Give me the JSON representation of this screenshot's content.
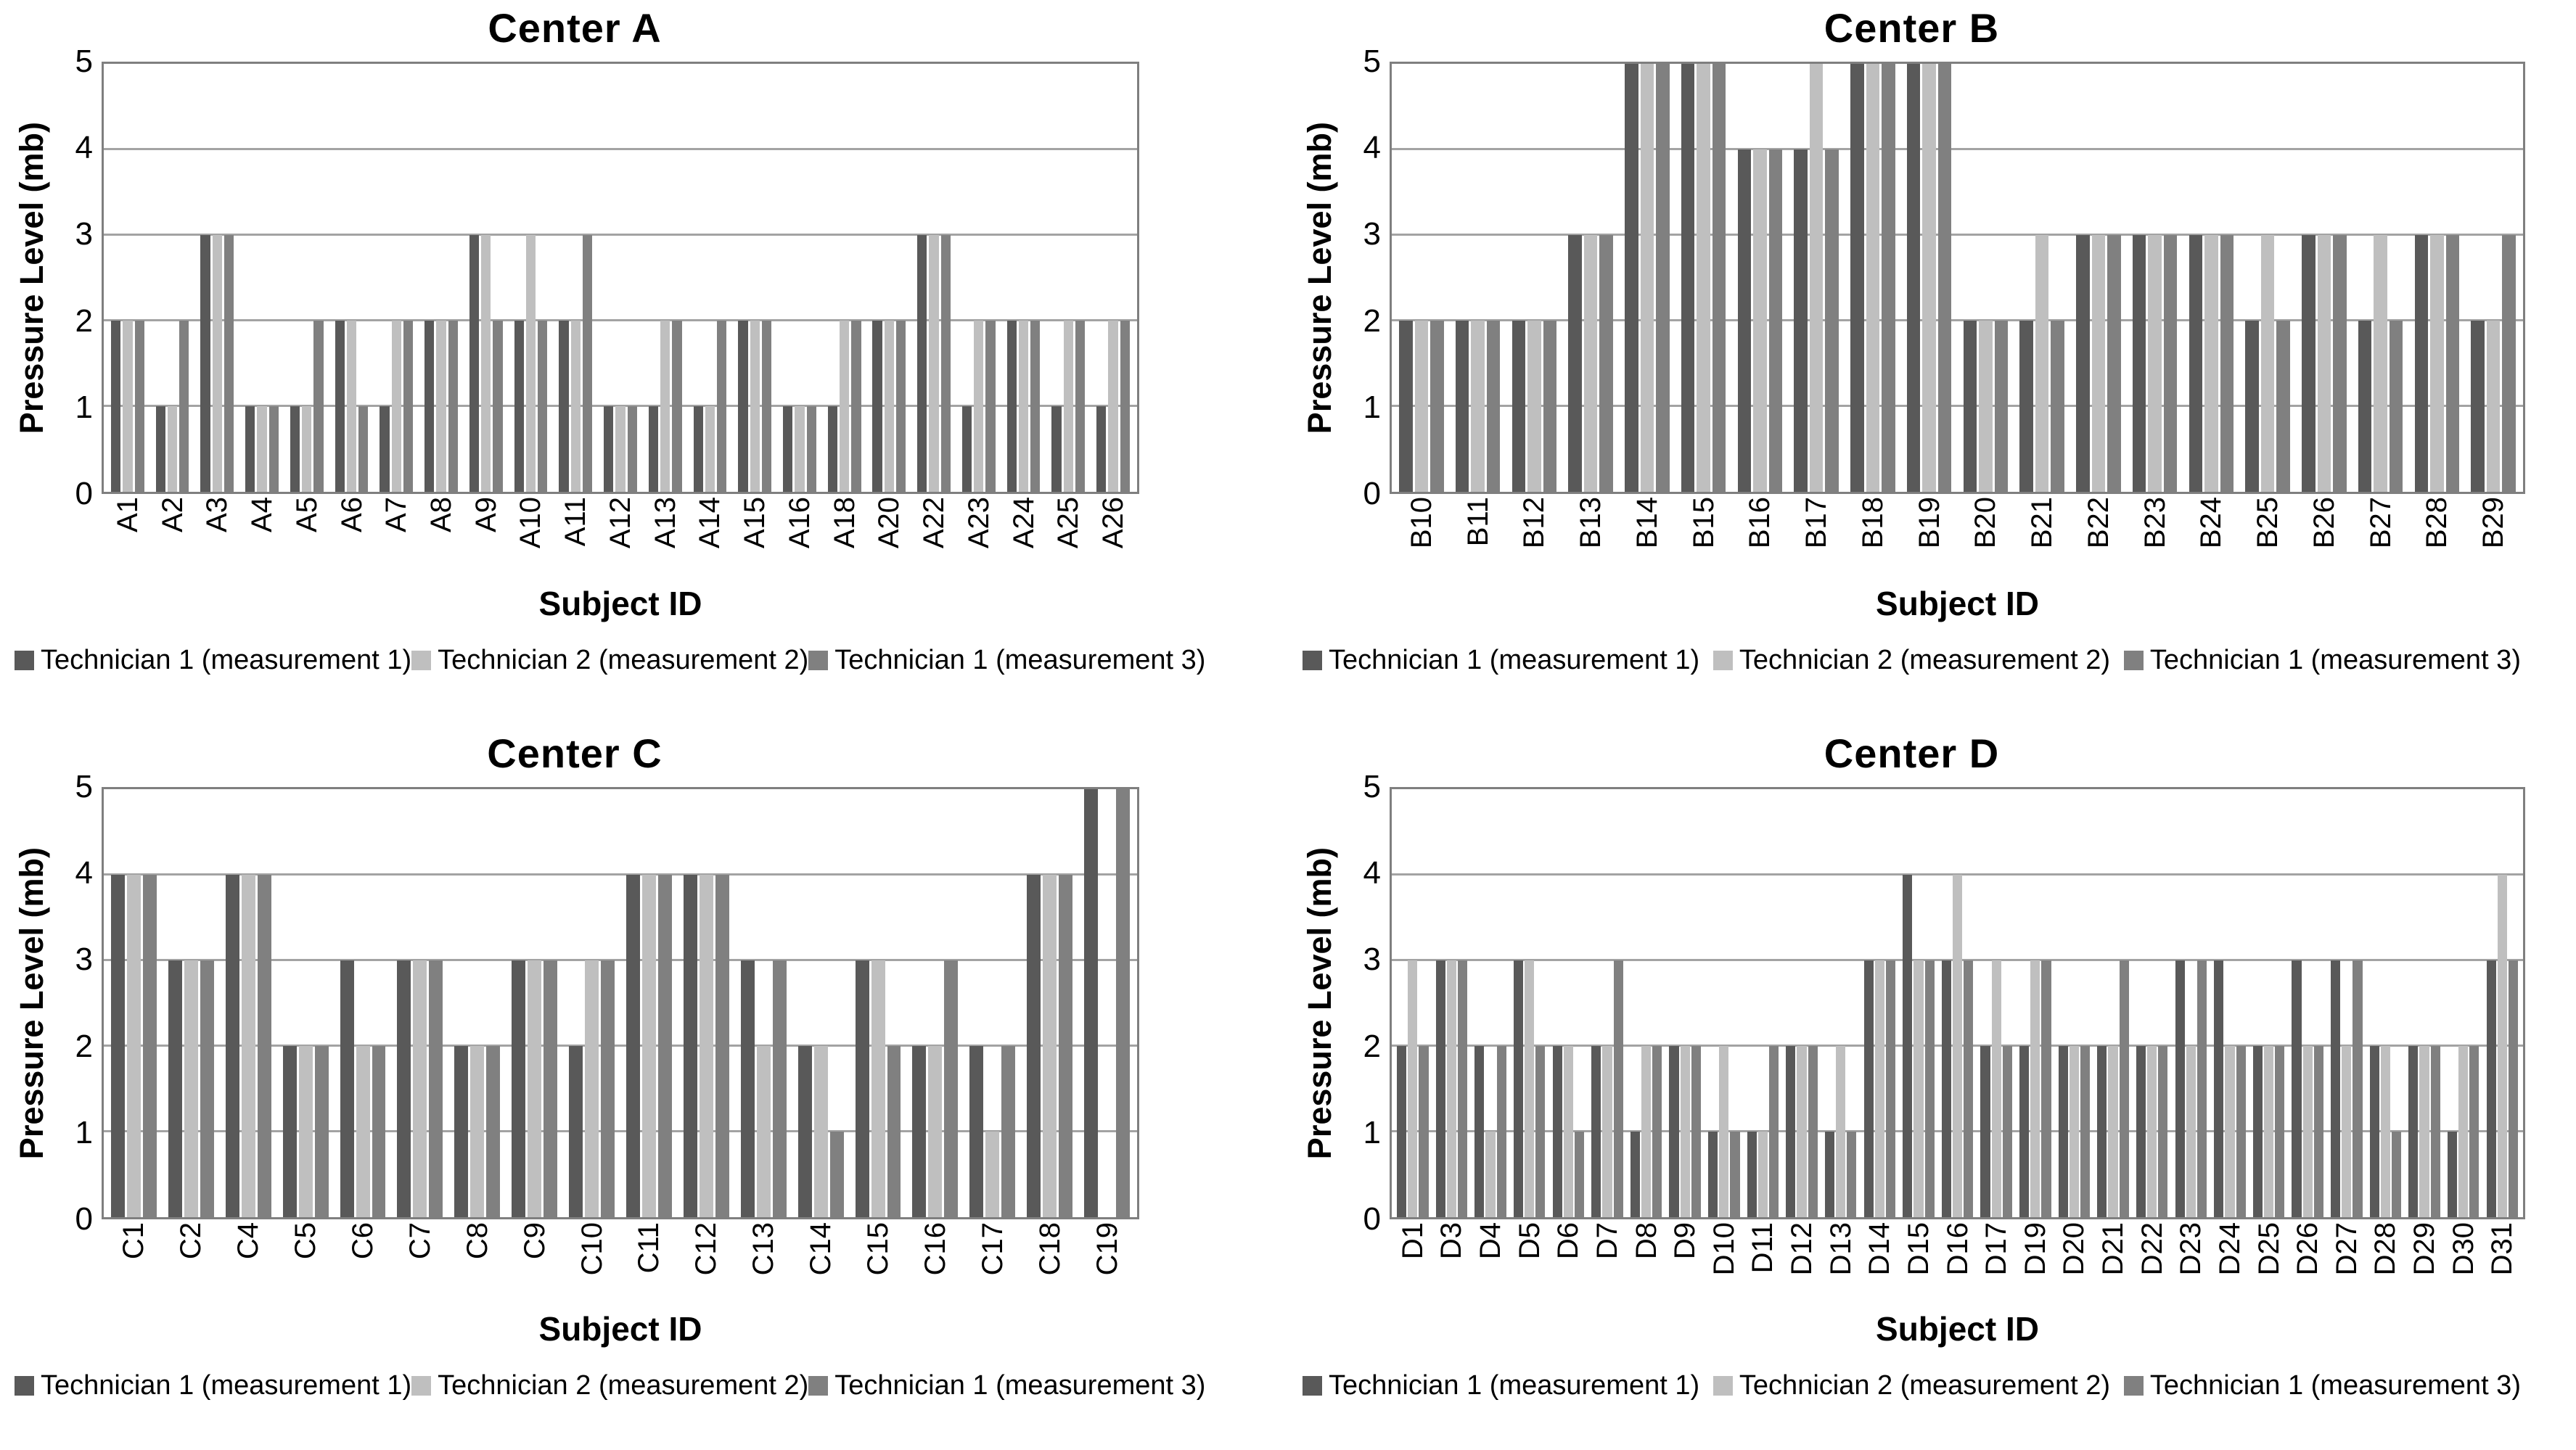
{
  "page": {
    "background": "#ffffff"
  },
  "colors": {
    "series": [
      "#595959",
      "#bfbfbf",
      "#808080"
    ],
    "gridline": "#a3a3a3",
    "axis_line": "#7f7f7f",
    "text": "#000000"
  },
  "legend_labels": [
    "Technician 1 (measurement 1)",
    "Technician 2 (measurement 2)",
    "Technician 1 (measurement 3)"
  ],
  "chart_data": [
    {
      "type": "bar",
      "title": "Center A",
      "xlabel": "Subject ID",
      "ylabel": "Pressure Level (mb)",
      "ylim": [
        0,
        5
      ],
      "yticks": [
        "5",
        "4",
        "3",
        "2",
        "1",
        "0"
      ],
      "grid": true,
      "legend_position": "bottom",
      "categories": [
        "A1",
        "A2",
        "A3",
        "A4",
        "A5",
        "A6",
        "A7",
        "A8",
        "A9",
        "A10",
        "A11",
        "A12",
        "A13",
        "A14",
        "A15",
        "A16",
        "A18",
        "A20",
        "A22",
        "A23",
        "A24",
        "A25",
        "A26"
      ],
      "series": [
        {
          "name": "Technician 1 (measurement 1)",
          "values": [
            2,
            1,
            3,
            1,
            1,
            2,
            1,
            2,
            3,
            2,
            2,
            1,
            1,
            1,
            2,
            1,
            1,
            2,
            3,
            1,
            2,
            1,
            1
          ]
        },
        {
          "name": "Technician 2 (measurement 2)",
          "values": [
            2,
            1,
            3,
            1,
            1,
            2,
            2,
            2,
            3,
            3,
            2,
            1,
            2,
            1,
            2,
            1,
            2,
            2,
            3,
            2,
            2,
            2,
            2
          ]
        },
        {
          "name": "Technician 1 (measurement 3)",
          "values": [
            2,
            2,
            3,
            1,
            2,
            1,
            2,
            2,
            2,
            2,
            3,
            1,
            2,
            2,
            2,
            1,
            2,
            2,
            3,
            2,
            2,
            2,
            2
          ]
        }
      ]
    },
    {
      "type": "bar",
      "title": "Center B",
      "xlabel": "Subject ID",
      "ylabel": "Pressure Level (mb)",
      "ylim": [
        0,
        5
      ],
      "yticks": [
        "5",
        "4",
        "3",
        "2",
        "1",
        "0"
      ],
      "grid": true,
      "legend_position": "bottom",
      "categories": [
        "B10",
        "B11",
        "B12",
        "B13",
        "B14",
        "B15",
        "B16",
        "B17",
        "B18",
        "B19",
        "B20",
        "B21",
        "B22",
        "B23",
        "B24",
        "B25",
        "B26",
        "B27",
        "B28",
        "B29"
      ],
      "series": [
        {
          "name": "Technician 1 (measurement 1)",
          "values": [
            2,
            2,
            2,
            3,
            5,
            5,
            4,
            4,
            5,
            5,
            2,
            2,
            3,
            3,
            3,
            2,
            3,
            2,
            3,
            2
          ]
        },
        {
          "name": "Technician 2 (measurement 2)",
          "values": [
            2,
            2,
            2,
            3,
            5,
            5,
            4,
            5,
            5,
            5,
            2,
            3,
            3,
            3,
            3,
            3,
            3,
            3,
            3,
            2
          ]
        },
        {
          "name": "Technician 1 (measurement 3)",
          "values": [
            2,
            2,
            2,
            3,
            5,
            5,
            4,
            4,
            5,
            5,
            2,
            2,
            3,
            3,
            3,
            2,
            3,
            2,
            3,
            3
          ]
        }
      ]
    },
    {
      "type": "bar",
      "title": "Center C",
      "xlabel": "Subject ID",
      "ylabel": "Pressure Level (mb)",
      "ylim": [
        0,
        5
      ],
      "yticks": [
        "5",
        "4",
        "3",
        "2",
        "1",
        "0"
      ],
      "grid": true,
      "legend_position": "bottom",
      "categories": [
        "C1",
        "C2",
        "C4",
        "C5",
        "C6",
        "C7",
        "C8",
        "C9",
        "C10",
        "C11",
        "C12",
        "C13",
        "C14",
        "C15",
        "C16",
        "C17",
        "C18",
        "C19"
      ],
      "series": [
        {
          "name": "Technician 1 (measurement 1)",
          "values": [
            4,
            3,
            4,
            2,
            3,
            3,
            2,
            3,
            2,
            4,
            4,
            3,
            2,
            3,
            2,
            2,
            4,
            5
          ]
        },
        {
          "name": "Technician 2 (measurement 2)",
          "values": [
            4,
            3,
            4,
            2,
            2,
            3,
            2,
            3,
            3,
            4,
            4,
            2,
            2,
            3,
            2,
            1,
            4,
            null
          ]
        },
        {
          "name": "Technician 1 (measurement 3)",
          "values": [
            4,
            3,
            4,
            2,
            2,
            3,
            2,
            3,
            3,
            4,
            4,
            3,
            1,
            2,
            3,
            2,
            4,
            5
          ]
        }
      ]
    },
    {
      "type": "bar",
      "title": "Center D",
      "xlabel": "Subject ID",
      "ylabel": "Pressure Level (mb)",
      "ylim": [
        0,
        5
      ],
      "yticks": [
        "5",
        "4",
        "3",
        "2",
        "1",
        "0"
      ],
      "grid": true,
      "legend_position": "bottom",
      "categories": [
        "D1",
        "D3",
        "D4",
        "D5",
        "D6",
        "D7",
        "D8",
        "D9",
        "D10",
        "D11",
        "D12",
        "D13",
        "D14",
        "D15",
        "D16",
        "D17",
        "D19",
        "D20",
        "D21",
        "D22",
        "D23",
        "D24",
        "D25",
        "D26",
        "D27",
        "D28",
        "D29",
        "D30",
        "D31"
      ],
      "series": [
        {
          "name": "Technician 1 (measurement 1)",
          "values": [
            2,
            3,
            2,
            3,
            2,
            2,
            1,
            2,
            1,
            1,
            2,
            1,
            3,
            4,
            3,
            2,
            2,
            2,
            2,
            2,
            3,
            3,
            2,
            3,
            3,
            2,
            2,
            1,
            3
          ]
        },
        {
          "name": "Technician 2 (measurement 2)",
          "values": [
            3,
            3,
            1,
            3,
            2,
            2,
            2,
            2,
            2,
            1,
            2,
            2,
            3,
            3,
            4,
            3,
            3,
            2,
            2,
            2,
            2,
            2,
            2,
            2,
            2,
            2,
            2,
            2,
            4
          ]
        },
        {
          "name": "Technician 1 (measurement 3)",
          "values": [
            2,
            3,
            2,
            2,
            1,
            3,
            2,
            2,
            1,
            2,
            2,
            1,
            3,
            3,
            3,
            2,
            3,
            2,
            3,
            2,
            3,
            2,
            2,
            2,
            3,
            1,
            2,
            2,
            3
          ]
        }
      ]
    }
  ]
}
